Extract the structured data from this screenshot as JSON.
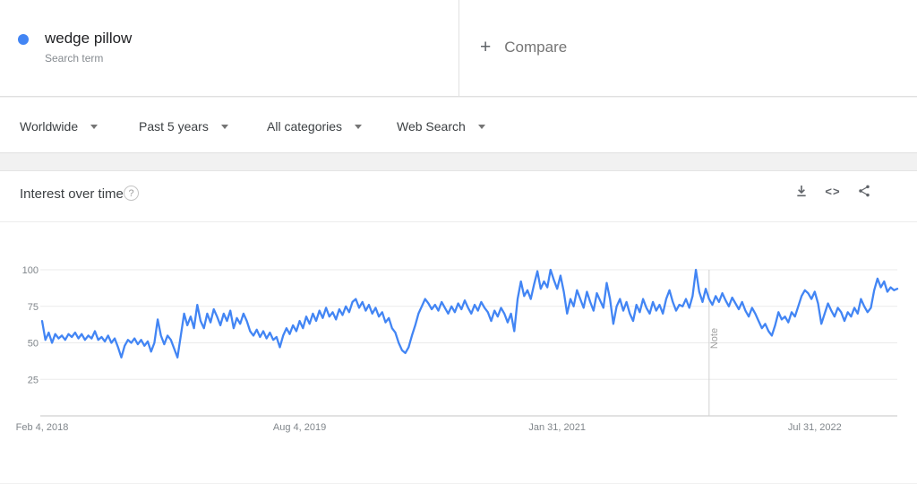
{
  "header": {
    "term": "wedge pillow",
    "term_type": "Search term",
    "dot_color": "#4285f4",
    "compare": {
      "plus": "+",
      "label": "Compare"
    }
  },
  "filters": [
    {
      "label": "Worldwide"
    },
    {
      "label": "Past 5 years"
    },
    {
      "label": "All categories"
    },
    {
      "label": "Web Search"
    }
  ],
  "widget": {
    "title": "Interest over time",
    "help_glyph": "?",
    "embed_glyph": "<>"
  },
  "chart_data": {
    "type": "line",
    "title": "Interest over time",
    "xlabel": "",
    "ylabel": "",
    "ylim": [
      0,
      100
    ],
    "y_ticks": [
      25,
      50,
      75,
      100
    ],
    "grid": true,
    "legend": "none",
    "line_color": "#4285f4",
    "x_ticks": [
      {
        "label": "Feb 4, 2018",
        "week": 0
      },
      {
        "label": "Aug 4, 2019",
        "week": 78
      },
      {
        "label": "Jan 31, 2021",
        "week": 156
      },
      {
        "label": "Jul 31, 2022",
        "week": 234
      }
    ],
    "annotation": {
      "label": "Note",
      "week": 202
    },
    "series": [
      {
        "name": "wedge pillow",
        "color": "#4285f4",
        "values": [
          65,
          52,
          57,
          50,
          56,
          53,
          55,
          52,
          56,
          54,
          57,
          53,
          56,
          52,
          55,
          53,
          58,
          52,
          54,
          51,
          55,
          50,
          53,
          47,
          40,
          48,
          52,
          50,
          53,
          49,
          52,
          48,
          51,
          44,
          50,
          66,
          55,
          49,
          55,
          52,
          46,
          40,
          55,
          70,
          62,
          68,
          60,
          76,
          65,
          60,
          70,
          64,
          73,
          68,
          62,
          70,
          65,
          72,
          60,
          67,
          63,
          70,
          65,
          58,
          55,
          59,
          54,
          58,
          53,
          57,
          52,
          54,
          47,
          55,
          60,
          56,
          62,
          58,
          65,
          60,
          68,
          63,
          70,
          65,
          72,
          67,
          74,
          68,
          71,
          66,
          73,
          69,
          75,
          71,
          78,
          80,
          74,
          78,
          72,
          76,
          70,
          74,
          68,
          71,
          64,
          67,
          60,
          57,
          50,
          45,
          43,
          47,
          55,
          62,
          70,
          75,
          80,
          77,
          73,
          76,
          72,
          78,
          74,
          70,
          75,
          71,
          77,
          73,
          79,
          74,
          70,
          76,
          72,
          78,
          74,
          71,
          65,
          72,
          68,
          74,
          70,
          64,
          70,
          58,
          80,
          92,
          82,
          86,
          80,
          90,
          99,
          87,
          92,
          88,
          100,
          93,
          87,
          96,
          85,
          70,
          80,
          75,
          86,
          80,
          74,
          85,
          78,
          72,
          84,
          79,
          74,
          91,
          80,
          63,
          75,
          80,
          72,
          78,
          70,
          65,
          76,
          71,
          80,
          74,
          70,
          78,
          72,
          76,
          70,
          80,
          86,
          78,
          72,
          76,
          75,
          80,
          74,
          82,
          100,
          85,
          78,
          87,
          80,
          76,
          82,
          78,
          84,
          79,
          75,
          81,
          77,
          73,
          78,
          72,
          68,
          74,
          70,
          65,
          60,
          63,
          58,
          55,
          62,
          71,
          66,
          68,
          64,
          71,
          68,
          75,
          82,
          86,
          84,
          80,
          85,
          77,
          63,
          70,
          77,
          72,
          68,
          74,
          71,
          65,
          71,
          68,
          74,
          70,
          80,
          75,
          71,
          74,
          86,
          94,
          88,
          92,
          85,
          88,
          86,
          87
        ]
      }
    ]
  }
}
